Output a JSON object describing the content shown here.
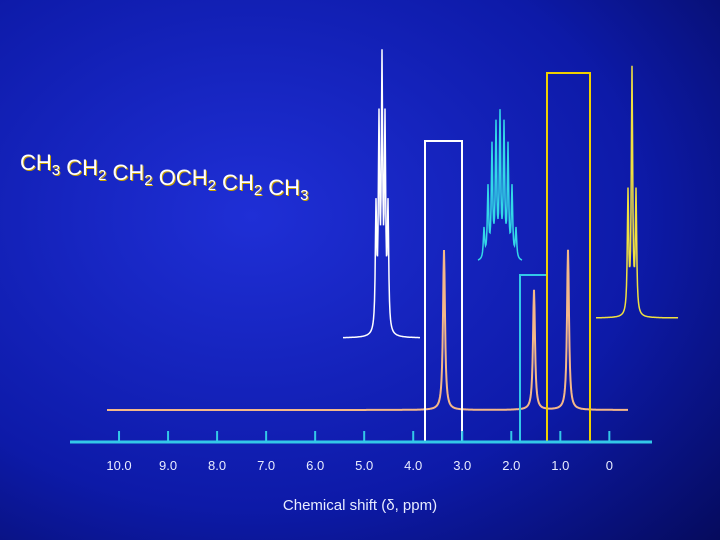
{
  "chart_data": {
    "type": "spectrum",
    "title_parts": [
      {
        "text": "CH",
        "sub": "3"
      },
      {
        "text": " CH",
        "sub": "2"
      },
      {
        "text": " CH",
        "sub": "2"
      },
      {
        "text": " OCH",
        "sub": "2"
      },
      {
        "text": " CH",
        "sub": "2"
      },
      {
        "text": " CH",
        "sub": "3"
      }
    ],
    "x_label": "Chemical shift (δ, ppm)",
    "xlim": [
      11,
      -0.87
    ],
    "xticks": [
      {
        "value": 10,
        "label": "10.0"
      },
      {
        "value": 9,
        "label": "9.0"
      },
      {
        "value": 8,
        "label": "8.0"
      },
      {
        "value": 7,
        "label": "7.0"
      },
      {
        "value": 6,
        "label": "6.0"
      },
      {
        "value": 5,
        "label": "5.0"
      },
      {
        "value": 4,
        "label": "4.0"
      },
      {
        "value": 3,
        "label": "3.0"
      },
      {
        "value": 2,
        "label": "2.0"
      },
      {
        "value": 1,
        "label": "1.0"
      },
      0
    ]
  }
}
